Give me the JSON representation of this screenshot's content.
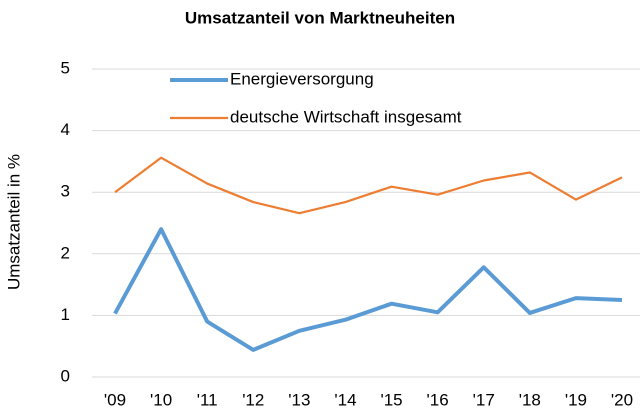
{
  "chart_data": {
    "type": "line",
    "title": "Umsatzanteil von Marktneuheiten",
    "y_label": "Umsatzanteil in %",
    "categories": [
      "'09",
      "'10",
      "'11",
      "'12",
      "'13",
      "'14",
      "'15",
      "'16",
      "'17",
      "'18",
      "'19",
      "'20"
    ],
    "series": [
      {
        "name": "Energieversorgung",
        "color": "#5b9bd5",
        "values": [
          1.03,
          2.4,
          0.9,
          0.44,
          0.75,
          0.93,
          1.19,
          1.05,
          1.78,
          1.04,
          1.28,
          1.25
        ]
      },
      {
        "name": "deutsche Wirtschaft insgesamt",
        "color": "#ed7d31",
        "values": [
          3.0,
          3.56,
          3.14,
          2.84,
          2.66,
          2.84,
          3.09,
          2.96,
          3.19,
          3.32,
          2.88,
          3.24
        ]
      }
    ],
    "ylim": [
      0,
      5
    ],
    "yticks": [
      0,
      1,
      2,
      3,
      4,
      5
    ],
    "grid": true,
    "legend": "top-left"
  }
}
